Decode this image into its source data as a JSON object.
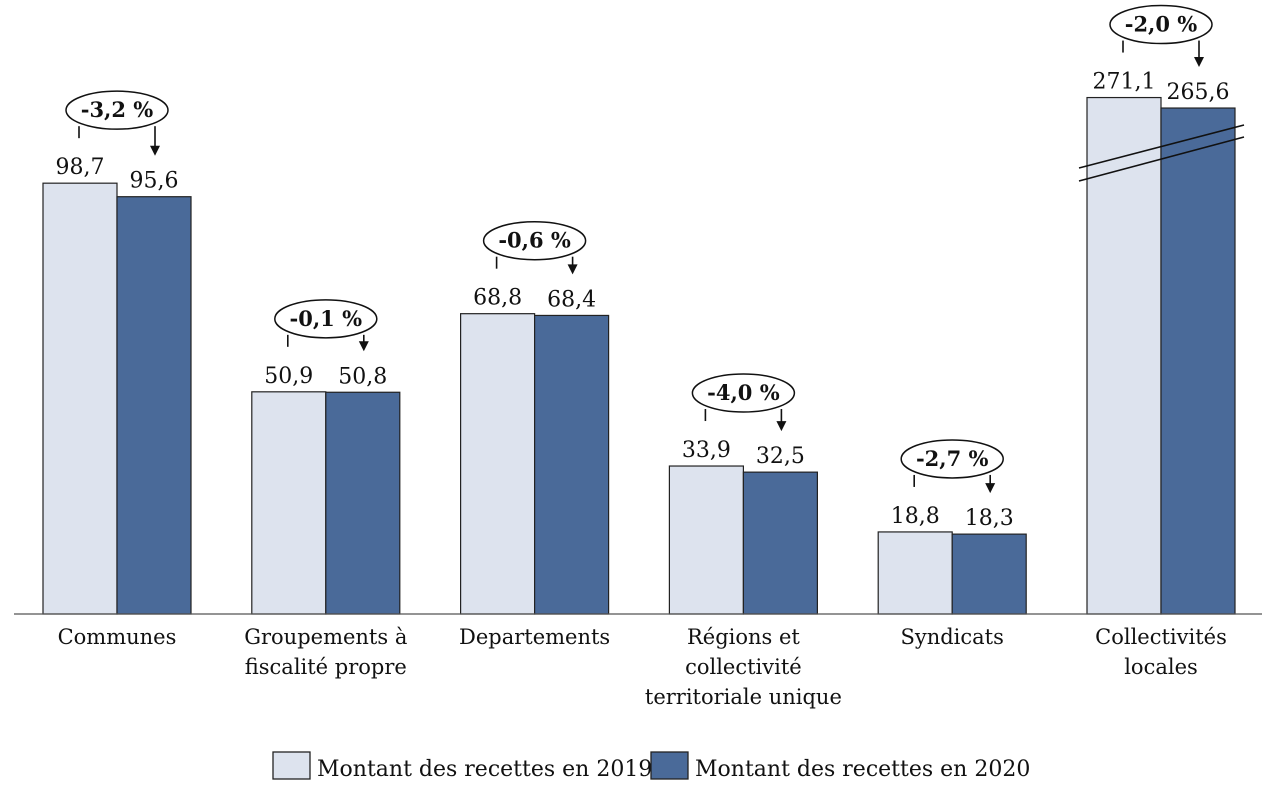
{
  "chart_data": {
    "type": "bar",
    "categories": [
      [
        "Communes"
      ],
      [
        "Groupements à",
        "fiscalité propre"
      ],
      [
        "Departements"
      ],
      [
        "Régions et",
        "collectivité",
        "territoriale unique"
      ],
      [
        "Syndicats"
      ],
      [
        "Collectivités",
        "locales"
      ]
    ],
    "series": [
      {
        "name": "Montant des recettes en 2019",
        "values": [
          98.7,
          50.9,
          68.8,
          33.9,
          18.8,
          271.1
        ],
        "color": "#dde3ee"
      },
      {
        "name": "Montant des recettes en 2020",
        "values": [
          95.6,
          50.8,
          68.4,
          32.5,
          18.3,
          265.6
        ],
        "color": "#4a6a99"
      }
    ],
    "value_labels": {
      "2019": [
        "98,7",
        "50,9",
        "68,8",
        "33,9",
        "18,8",
        "271,1"
      ],
      "2020": [
        "95,6",
        "50,8",
        "68,4",
        "32,5",
        "18,3",
        "265,6"
      ]
    },
    "changes": [
      "-3,2 %",
      "-0,1 %",
      "-0,6 %",
      "-4,0 %",
      "-2,7 %",
      "-2,0 %"
    ],
    "broken_axis_category": "Collectivités locales",
    "legend_placement": "bottom-center",
    "grid": false
  }
}
